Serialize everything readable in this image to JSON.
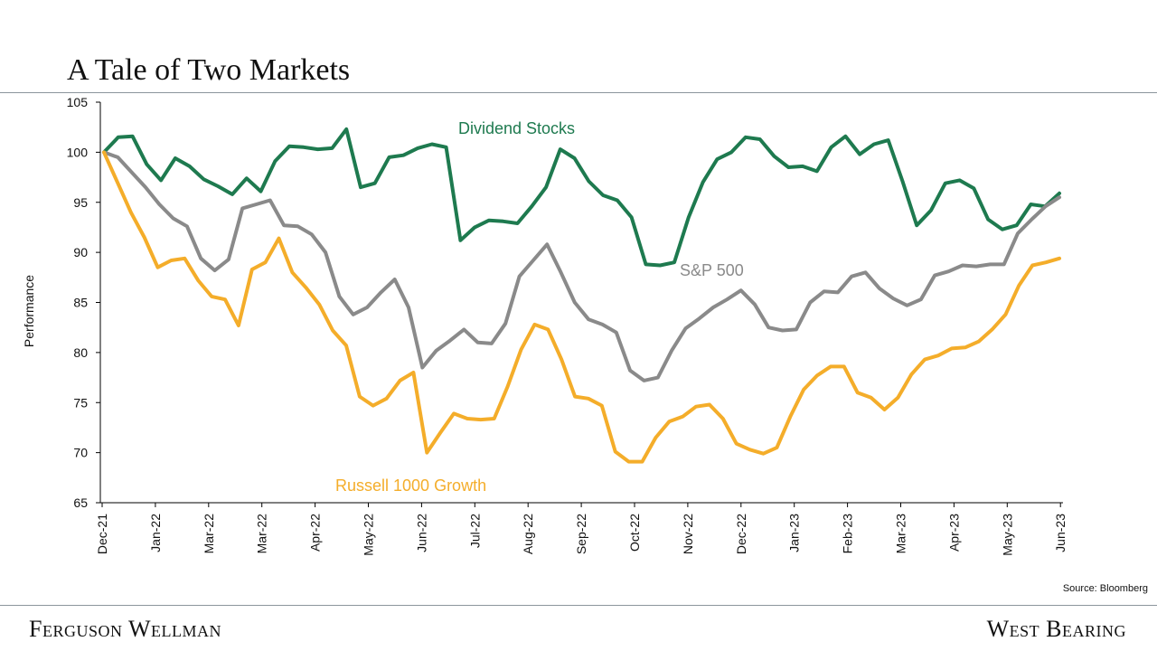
{
  "header": {
    "title": "A Tale of Two Markets"
  },
  "footer": {
    "left_brand": "Ferguson Wellman",
    "right_brand": "West Bearing",
    "source": "Source: Bloomberg"
  },
  "chart_data": {
    "type": "line",
    "title": "A Tale of Two Markets",
    "ylabel": "Performance",
    "xlabel": "",
    "ylim": [
      65,
      105
    ],
    "yticks": [
      65,
      70,
      75,
      80,
      85,
      90,
      95,
      100,
      105
    ],
    "xticks": [
      "Dec-21",
      "Jan-22",
      "Mar-22",
      "Mar-22",
      "Apr-22",
      "May-22",
      "Jun-22",
      "Jul-22",
      "Aug-22",
      "Sep-22",
      "Oct-22",
      "Nov-22",
      "Dec-22",
      "Jan-23",
      "Feb-23",
      "Mar-23",
      "Apr-23",
      "May-23",
      "Jun-23"
    ],
    "grid": false,
    "legend": "inline labels",
    "series": [
      {
        "name": "Dividend Stocks",
        "color": "#1e7a4f",
        "values": [
          100,
          101.5,
          101.6,
          98.8,
          97.2,
          99.4,
          98.6,
          97.3,
          96.6,
          95.8,
          97.4,
          96.1,
          99.1,
          100.6,
          100.5,
          100.3,
          100.4,
          102.3,
          96.5,
          96.9,
          99.5,
          99.7,
          100.4,
          100.8,
          100.5,
          91.2,
          92.5,
          93.2,
          93.1,
          92.9,
          94.6,
          96.5,
          100.3,
          99.4,
          97.1,
          95.7,
          95.2,
          93.5,
          88.8,
          88.7,
          89.0,
          93.5,
          97.0,
          99.3,
          100.0,
          101.5,
          101.3,
          99.6,
          98.5,
          98.6,
          98.1,
          100.5,
          101.6,
          99.8,
          100.8,
          101.2,
          97.1,
          92.7,
          94.2,
          96.9,
          97.2,
          96.4,
          93.3,
          92.3,
          92.7,
          94.8,
          94.6,
          95.9
        ]
      },
      {
        "name": "S&P 500",
        "color": "#8a8a8a",
        "values": [
          100,
          99.5,
          98.0,
          96.5,
          94.8,
          93.4,
          92.6,
          89.4,
          88.2,
          89.3,
          94.4,
          94.8,
          95.2,
          92.7,
          92.6,
          91.8,
          90.0,
          85.6,
          83.8,
          84.5,
          86.0,
          87.3,
          84.5,
          78.5,
          80.2,
          81.2,
          82.3,
          81.0,
          80.9,
          82.9,
          87.6,
          89.2,
          90.8,
          88.0,
          85.0,
          83.3,
          82.8,
          82.0,
          78.2,
          77.2,
          77.5,
          80.2,
          82.4,
          83.4,
          84.5,
          85.3,
          86.2,
          84.8,
          82.5,
          82.2,
          82.3,
          85.0,
          86.1,
          86.0,
          87.6,
          88.0,
          86.4,
          85.4,
          84.7,
          85.3,
          87.7,
          88.1,
          88.7,
          88.6,
          88.8,
          88.8,
          91.9,
          93.3,
          94.6,
          95.5
        ]
      },
      {
        "name": "Russell 1000 Growth",
        "color": "#f4ad2a",
        "values": [
          100,
          97.0,
          94.0,
          91.5,
          88.5,
          89.2,
          89.4,
          87.2,
          85.6,
          85.3,
          82.7,
          88.3,
          89.0,
          91.4,
          88.0,
          86.5,
          84.8,
          82.2,
          80.7,
          75.6,
          74.7,
          75.4,
          77.2,
          78.0,
          70.0,
          72.0,
          73.9,
          73.4,
          73.3,
          73.4,
          76.6,
          80.3,
          82.8,
          82.3,
          79.3,
          75.6,
          75.4,
          74.7,
          70.1,
          69.1,
          69.1,
          71.5,
          73.1,
          73.6,
          74.6,
          74.8,
          73.4,
          70.9,
          70.3,
          69.9,
          70.5,
          73.6,
          76.3,
          77.7,
          78.6,
          78.6,
          76.0,
          75.5,
          74.3,
          75.5,
          77.8,
          79.3,
          79.7,
          80.4,
          80.5,
          81.1,
          82.3,
          83.8,
          86.7,
          88.7,
          89.0,
          89.4
        ]
      }
    ],
    "annotations": [
      {
        "text": "Dividend Stocks",
        "series": "Dividend Stocks"
      },
      {
        "text": "S&P 500",
        "series": "S&P 500"
      },
      {
        "text": "Russell 1000 Growth",
        "series": "Russell 1000 Growth"
      }
    ]
  }
}
